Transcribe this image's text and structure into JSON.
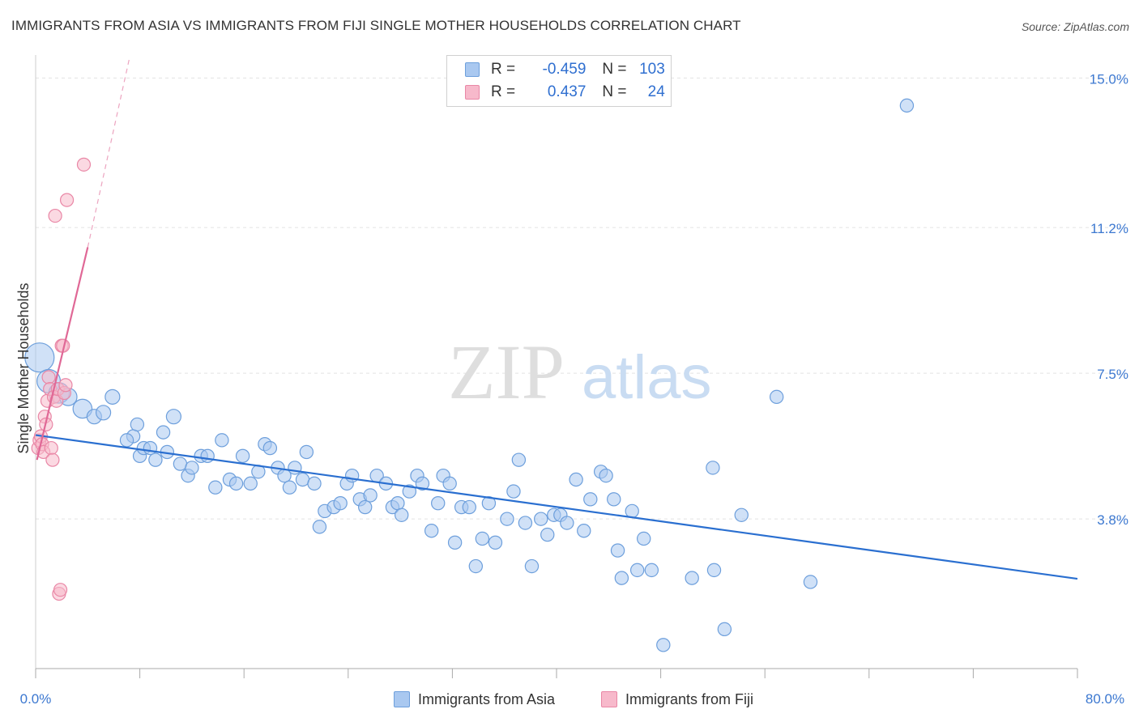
{
  "title": "IMMIGRANTS FROM ASIA VS IMMIGRANTS FROM FIJI SINGLE MOTHER HOUSEHOLDS CORRELATION CHART",
  "source": "Source: ZipAtlas.com",
  "watermark": {
    "zip": "ZIP",
    "atlas": "atlas"
  },
  "legend": {
    "series1": {
      "r_label": "R =",
      "r_value": "-0.459",
      "n_label": "N =",
      "n_value": "103"
    },
    "series2": {
      "r_label": "R =",
      "r_value": "0.437",
      "n_label": "N =",
      "n_value": "24"
    }
  },
  "colors": {
    "asia_fill": "#a9c8f0",
    "asia_stroke": "#6d9fdc",
    "asia_line": "#2a6fd0",
    "fiji_fill": "#f7b9cb",
    "fiji_stroke": "#e987a6",
    "fiji_line": "#e06896",
    "grid": "#e3e3e3",
    "tick_label": "#3c78d0"
  },
  "chart_data": {
    "type": "scatter",
    "title": "IMMIGRANTS FROM ASIA VS IMMIGRANTS FROM FIJI SINGLE MOTHER HOUSEHOLDS CORRELATION CHART",
    "xlabel": "",
    "ylabel": "Single Mother Households",
    "xlim": [
      0,
      80
    ],
    "ylim": [
      0,
      15.5
    ],
    "x_tick_labels": [
      "0.0%",
      "80.0%"
    ],
    "y_ticks": [
      3.8,
      7.5,
      11.2,
      15.0
    ],
    "y_tick_labels": [
      "3.8%",
      "7.5%",
      "11.2%",
      "15.0%"
    ],
    "grid": true,
    "legend_position": "top-center",
    "series": [
      {
        "name": "Immigrants from Asia",
        "r": -0.459,
        "n": 103,
        "trend": {
          "x": [
            0,
            80
          ],
          "y": [
            5.93,
            2.28
          ]
        },
        "points": [
          [
            0.3,
            7.9,
            2.0
          ],
          [
            1.0,
            7.3,
            1.6
          ],
          [
            1.8,
            7.0,
            1.4
          ],
          [
            2.5,
            6.9,
            1.2
          ],
          [
            3.6,
            6.6,
            1.3
          ],
          [
            4.5,
            6.4,
            1.0
          ],
          [
            5.2,
            6.5,
            1.0
          ],
          [
            5.9,
            6.9,
            1.0
          ],
          [
            7.5,
            5.9,
            0.9
          ],
          [
            8.0,
            5.4,
            0.9
          ],
          [
            7.8,
            6.2,
            0.9
          ],
          [
            7.0,
            5.8,
            0.9
          ],
          [
            8.3,
            5.6,
            0.9
          ],
          [
            8.8,
            5.6,
            0.9
          ],
          [
            9.2,
            5.3,
            0.9
          ],
          [
            9.8,
            6.0,
            0.9
          ],
          [
            10.6,
            6.4,
            1.0
          ],
          [
            11.1,
            5.2,
            0.9
          ],
          [
            10.1,
            5.5,
            0.9
          ],
          [
            11.7,
            4.9,
            0.9
          ],
          [
            12.0,
            5.1,
            0.9
          ],
          [
            12.7,
            5.4,
            0.9
          ],
          [
            13.2,
            5.4,
            0.9
          ],
          [
            13.8,
            4.6,
            0.9
          ],
          [
            14.3,
            5.8,
            0.9
          ],
          [
            14.9,
            4.8,
            0.9
          ],
          [
            15.4,
            4.7,
            0.9
          ],
          [
            15.9,
            5.4,
            0.9
          ],
          [
            16.5,
            4.7,
            0.9
          ],
          [
            17.1,
            5.0,
            0.9
          ],
          [
            17.6,
            5.7,
            0.9
          ],
          [
            18.0,
            5.6,
            0.9
          ],
          [
            18.6,
            5.1,
            0.9
          ],
          [
            19.1,
            4.9,
            0.9
          ],
          [
            19.5,
            4.6,
            0.9
          ],
          [
            19.9,
            5.1,
            0.9
          ],
          [
            20.5,
            4.8,
            0.9
          ],
          [
            20.8,
            5.5,
            0.9
          ],
          [
            21.4,
            4.7,
            0.9
          ],
          [
            21.8,
            3.6,
            0.9
          ],
          [
            22.2,
            4.0,
            0.9
          ],
          [
            22.9,
            4.1,
            0.9
          ],
          [
            23.4,
            4.2,
            0.9
          ],
          [
            23.9,
            4.7,
            0.9
          ],
          [
            24.3,
            4.9,
            0.9
          ],
          [
            24.9,
            4.3,
            0.9
          ],
          [
            25.3,
            4.1,
            0.9
          ],
          [
            25.7,
            4.4,
            0.9
          ],
          [
            26.2,
            4.9,
            0.9
          ],
          [
            26.9,
            4.7,
            0.9
          ],
          [
            27.4,
            4.1,
            0.9
          ],
          [
            27.8,
            4.2,
            0.9
          ],
          [
            28.1,
            3.9,
            0.9
          ],
          [
            28.7,
            4.5,
            0.9
          ],
          [
            29.3,
            4.9,
            0.9
          ],
          [
            29.7,
            4.7,
            0.9
          ],
          [
            30.4,
            3.5,
            0.9
          ],
          [
            30.9,
            4.2,
            0.9
          ],
          [
            31.3,
            4.9,
            0.9
          ],
          [
            31.8,
            4.7,
            0.9
          ],
          [
            32.2,
            3.2,
            0.9
          ],
          [
            32.7,
            4.1,
            0.9
          ],
          [
            33.3,
            4.1,
            0.9
          ],
          [
            33.8,
            2.6,
            0.9
          ],
          [
            34.3,
            3.3,
            0.9
          ],
          [
            34.8,
            4.2,
            0.9
          ],
          [
            35.3,
            3.2,
            0.9
          ],
          [
            36.2,
            3.8,
            0.9
          ],
          [
            36.7,
            4.5,
            0.9
          ],
          [
            37.1,
            5.3,
            0.9
          ],
          [
            37.6,
            3.7,
            0.9
          ],
          [
            38.1,
            2.6,
            0.9
          ],
          [
            38.8,
            3.8,
            0.9
          ],
          [
            39.3,
            3.4,
            0.9
          ],
          [
            39.8,
            3.9,
            0.9
          ],
          [
            40.3,
            3.9,
            0.9
          ],
          [
            40.8,
            3.7,
            0.9
          ],
          [
            41.5,
            4.8,
            0.9
          ],
          [
            42.1,
            3.5,
            0.9
          ],
          [
            42.6,
            4.3,
            0.9
          ],
          [
            43.4,
            5.0,
            0.9
          ],
          [
            43.8,
            4.9,
            0.9
          ],
          [
            44.4,
            4.3,
            0.9
          ],
          [
            44.7,
            3.0,
            0.9
          ],
          [
            45.0,
            2.3,
            0.9
          ],
          [
            45.8,
            4.0,
            0.9
          ],
          [
            46.2,
            2.5,
            0.9
          ],
          [
            46.7,
            3.3,
            0.9
          ],
          [
            47.3,
            2.5,
            0.9
          ],
          [
            48.2,
            0.6,
            0.9
          ],
          [
            50.4,
            2.3,
            0.9
          ],
          [
            52.0,
            5.1,
            0.9
          ],
          [
            52.1,
            2.5,
            0.9
          ],
          [
            52.9,
            1.0,
            0.9
          ],
          [
            54.2,
            3.9,
            0.9
          ],
          [
            56.9,
            6.9,
            0.9
          ],
          [
            59.5,
            2.2,
            0.9
          ],
          [
            66.9,
            14.3,
            0.9
          ]
        ]
      },
      {
        "name": "Immigrants from Fiji",
        "r": 0.437,
        "n": 24,
        "trend": {
          "x": [
            0.1,
            4.0
          ],
          "y": [
            5.3,
            10.7
          ],
          "dashed_to": [
            7.2,
            15.5
          ]
        },
        "points": [
          [
            0.2,
            5.6
          ],
          [
            0.3,
            5.8
          ],
          [
            0.4,
            5.9
          ],
          [
            0.5,
            5.7
          ],
          [
            0.6,
            5.5
          ],
          [
            0.7,
            6.4
          ],
          [
            0.8,
            6.2
          ],
          [
            0.9,
            6.8
          ],
          [
            1.0,
            7.4
          ],
          [
            1.1,
            7.1
          ],
          [
            1.2,
            5.6
          ],
          [
            1.3,
            5.3
          ],
          [
            1.4,
            6.9
          ],
          [
            1.5,
            11.5
          ],
          [
            1.6,
            6.8
          ],
          [
            1.7,
            7.1
          ],
          [
            1.8,
            1.9
          ],
          [
            1.9,
            2.0
          ],
          [
            2.0,
            8.2
          ],
          [
            2.1,
            8.2
          ],
          [
            2.2,
            7.0
          ],
          [
            2.3,
            7.2
          ],
          [
            2.4,
            11.9
          ],
          [
            3.7,
            12.8
          ]
        ]
      }
    ]
  },
  "bottom_legend": {
    "asia": "Immigrants from Asia",
    "fiji": "Immigrants from Fiji"
  }
}
